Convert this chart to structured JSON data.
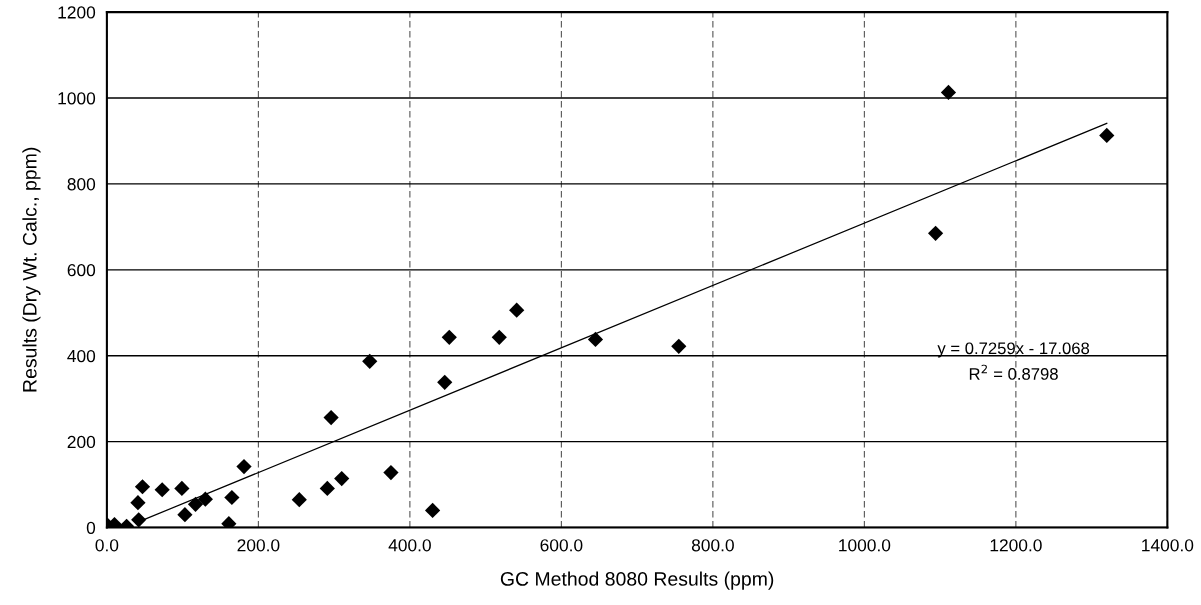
{
  "chart_data": {
    "type": "scatter",
    "xlabel": "GC Method 8080 Results (ppm)",
    "ylabel": "Results (Dry Wt. Calc., ppm)",
    "xlim": [
      0,
      1400
    ],
    "ylim": [
      0,
      1200
    ],
    "xticks": [
      {
        "value": 0,
        "label": "0.0"
      },
      {
        "value": 200,
        "label": "200.0"
      },
      {
        "value": 400,
        "label": "400.0"
      },
      {
        "value": 600,
        "label": "600.0"
      },
      {
        "value": 800,
        "label": "800.0"
      },
      {
        "value": 1000,
        "label": "1000.0"
      },
      {
        "value": 1200,
        "label": "1200.0"
      },
      {
        "value": 1400,
        "label": "1400.0"
      }
    ],
    "yticks": [
      0,
      200,
      400,
      600,
      800,
      1000,
      1200
    ],
    "grid": true,
    "marker": "diamond",
    "series": [
      {
        "color": "#000000",
        "x": [
          1,
          10,
          26,
          42,
          41,
          47,
          73,
          99,
          103,
          117,
          130,
          161,
          165,
          181,
          254,
          291,
          296,
          310,
          347,
          375,
          430,
          446,
          452,
          518,
          541,
          645,
          755,
          1094,
          1111,
          1320
        ],
        "values": [
          5,
          7,
          3,
          18,
          58,
          95,
          88,
          91,
          30,
          54,
          66,
          9,
          70,
          142,
          65,
          91,
          256,
          114,
          387,
          128,
          40,
          338,
          443,
          443,
          506,
          438,
          422,
          685,
          1013,
          913
        ]
      },
      {
        "type": "line",
        "color": "#000000",
        "line_style": "solid",
        "marker": "none",
        "x": [
          40,
          1320
        ],
        "values": [
          12,
          941
        ]
      }
    ],
    "annotations": [
      "y = 0.7259x - 17.068",
      "R$^{2}$ = 0.8798"
    ]
  }
}
